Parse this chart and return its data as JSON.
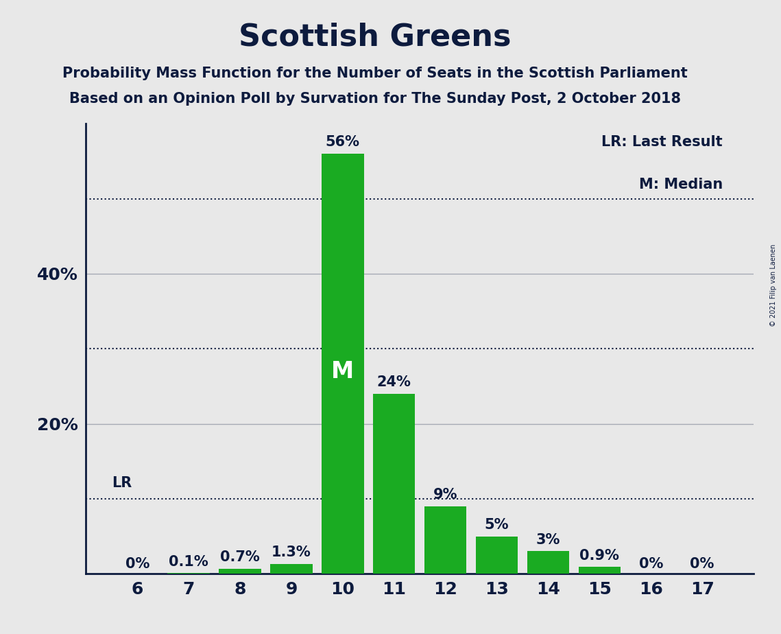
{
  "title": "Scottish Greens",
  "subtitle1": "Probability Mass Function for the Number of Seats in the Scottish Parliament",
  "subtitle2": "Based on an Opinion Poll by Survation for The Sunday Post, 2 October 2018",
  "copyright": "© 2021 Filip van Laenen",
  "categories": [
    6,
    7,
    8,
    9,
    10,
    11,
    12,
    13,
    14,
    15,
    16,
    17
  ],
  "values": [
    0.0,
    0.1,
    0.7,
    1.3,
    56.0,
    24.0,
    9.0,
    5.0,
    3.0,
    0.9,
    0.0,
    0.0
  ],
  "labels": [
    "0%",
    "0.1%",
    "0.7%",
    "1.3%",
    "56%",
    "24%",
    "9%",
    "5%",
    "3%",
    "0.9%",
    "0%",
    "0%"
  ],
  "bar_color": "#1aab22",
  "bg_color": "#e8e8e8",
  "text_color": "#0d1b3e",
  "median_seat": 10,
  "lr_seat": 6,
  "lr_label": "LR",
  "median_label": "M",
  "legend_lr": "LR: Last Result",
  "legend_m": "M: Median",
  "dotted_lines": [
    10,
    30,
    50
  ],
  "solid_lines": [
    20,
    40
  ],
  "ylim": [
    0,
    60
  ],
  "ytick_positions": [
    20,
    40
  ],
  "ytick_labels": [
    "20%",
    "40%"
  ]
}
